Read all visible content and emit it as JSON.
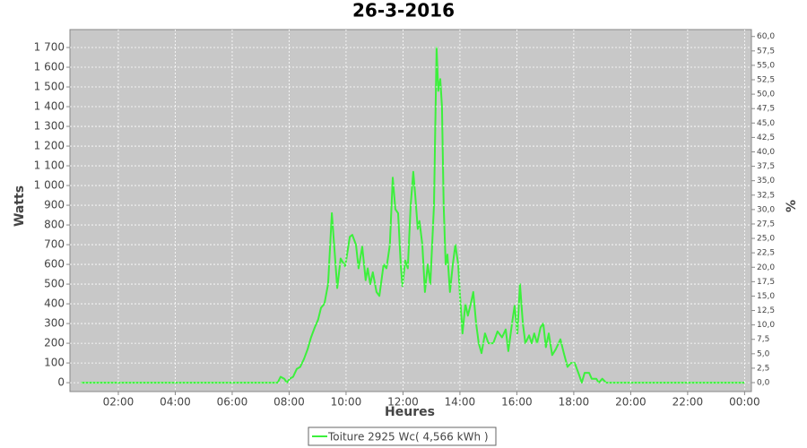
{
  "chart_data": {
    "type": "line",
    "title": "26-3-2016",
    "xlabel": "Heures",
    "ylabel": "Watts",
    "y2label": "%",
    "x": [
      0.68,
      7.6,
      7.7,
      7.83,
      7.92,
      8.02,
      8.14,
      8.27,
      8.39,
      8.52,
      8.65,
      8.77,
      8.9,
      9.02,
      9.12,
      9.24,
      9.37,
      9.5,
      9.69,
      9.81,
      9.97,
      10.13,
      10.22,
      10.35,
      10.44,
      10.57,
      10.69,
      10.76,
      10.85,
      10.94,
      11.07,
      11.17,
      11.32,
      11.42,
      11.54,
      11.64,
      11.73,
      11.83,
      11.92,
      11.98,
      12.08,
      12.17,
      12.27,
      12.36,
      12.43,
      12.52,
      12.58,
      12.68,
      12.77,
      12.87,
      12.96,
      13.09,
      13.18,
      13.24,
      13.31,
      13.37,
      13.43,
      13.5,
      13.56,
      13.65,
      13.75,
      13.84,
      13.94,
      14.0,
      14.09,
      14.19,
      14.28,
      14.38,
      14.47,
      14.57,
      14.66,
      14.76,
      14.88,
      15.0,
      15.17,
      15.32,
      15.48,
      15.61,
      15.7,
      15.83,
      15.92,
      16.02,
      16.11,
      16.21,
      16.3,
      16.43,
      16.52,
      16.61,
      16.71,
      16.83,
      16.93,
      17.02,
      17.12,
      17.24,
      17.37,
      17.53,
      17.65,
      17.78,
      17.9,
      18.03,
      18.16,
      18.28,
      18.38,
      18.54,
      18.63,
      18.79,
      18.88,
      19.0,
      19.13,
      24.0
    ],
    "series": [
      {
        "name": "Toiture 2925 Wc( 4,566 kWh )",
        "color": "#3cf03c",
        "values": [
          0,
          0,
          30,
          20,
          0,
          20,
          30,
          70,
          80,
          120,
          170,
          230,
          280,
          320,
          380,
          400,
          500,
          860,
          480,
          630,
          590,
          740,
          750,
          700,
          580,
          690,
          520,
          580,
          500,
          560,
          460,
          440,
          600,
          580,
          700,
          1040,
          880,
          860,
          600,
          490,
          620,
          580,
          900,
          1070,
          950,
          780,
          820,
          700,
          460,
          600,
          500,
          900,
          1700,
          1480,
          1540,
          1400,
          900,
          600,
          650,
          460,
          600,
          700,
          600,
          450,
          250,
          400,
          340,
          400,
          460,
          300,
          200,
          150,
          250,
          200,
          200,
          260,
          230,
          270,
          160,
          300,
          390,
          250,
          500,
          300,
          200,
          240,
          200,
          250,
          200,
          280,
          300,
          180,
          250,
          140,
          170,
          220,
          150,
          80,
          100,
          100,
          50,
          0,
          50,
          50,
          20,
          20,
          0,
          20,
          0,
          0
        ]
      }
    ],
    "xlim": [
      0.3,
      24.24
    ],
    "xticks": [
      {
        "value": 2,
        "label": "02:00"
      },
      {
        "value": 4,
        "label": "04:00"
      },
      {
        "value": 6,
        "label": "06:00"
      },
      {
        "value": 8,
        "label": "08:00"
      },
      {
        "value": 10,
        "label": "10:00"
      },
      {
        "value": 12,
        "label": "12:00"
      },
      {
        "value": 14,
        "label": "14:00"
      },
      {
        "value": 16,
        "label": "16:00"
      },
      {
        "value": 18,
        "label": "18:00"
      },
      {
        "value": 20,
        "label": "20:00"
      },
      {
        "value": 22,
        "label": "22:00"
      },
      {
        "value": 24,
        "label": "00:00"
      }
    ],
    "ylim": [
      -45,
      1791
    ],
    "yticks": [
      0,
      100,
      200,
      300,
      400,
      500,
      600,
      700,
      800,
      900,
      {
        "value": 1000,
        "label": "1 000"
      },
      {
        "value": 1100,
        "label": "1 100"
      },
      {
        "value": 1200,
        "label": "1 200"
      },
      {
        "value": 1300,
        "label": "1 300"
      },
      {
        "value": 1400,
        "label": "1 400"
      },
      {
        "value": 1500,
        "label": "1 500"
      },
      {
        "value": 1600,
        "label": "1 600"
      },
      {
        "value": 1700,
        "label": "1 700"
      }
    ],
    "y2lim": [
      -1.55,
      61.2
    ],
    "y2ticks": [
      {
        "value": 0,
        "label": "0,0"
      },
      {
        "value": 2.5,
        "label": "2,5"
      },
      {
        "value": 5,
        "label": "5,0"
      },
      {
        "value": 7.5,
        "label": "7,5"
      },
      {
        "value": 10,
        "label": "10,0"
      },
      {
        "value": 12.5,
        "label": "12,5"
      },
      {
        "value": 15,
        "label": "15,0"
      },
      {
        "value": 17.5,
        "label": "17,5"
      },
      {
        "value": 20,
        "label": "20,0"
      },
      {
        "value": 22.5,
        "label": "22,5"
      },
      {
        "value": 25,
        "label": "25,0"
      },
      {
        "value": 27.5,
        "label": "27,5"
      },
      {
        "value": 30,
        "label": "30,0"
      },
      {
        "value": 32.5,
        "label": "32,5"
      },
      {
        "value": 35,
        "label": "35,0"
      },
      {
        "value": 37.5,
        "label": "37,5"
      },
      {
        "value": 40,
        "label": "40,0"
      },
      {
        "value": 42.5,
        "label": "42,5"
      },
      {
        "value": 45,
        "label": "45,0"
      },
      {
        "value": 47.5,
        "label": "47,5"
      },
      {
        "value": 50,
        "label": "50,0"
      },
      {
        "value": 52.5,
        "label": "52,5"
      },
      {
        "value": 55,
        "label": "55,0"
      },
      {
        "value": 57.5,
        "label": "57,5"
      },
      {
        "value": 60,
        "label": "60,0"
      }
    ],
    "grid": true
  }
}
